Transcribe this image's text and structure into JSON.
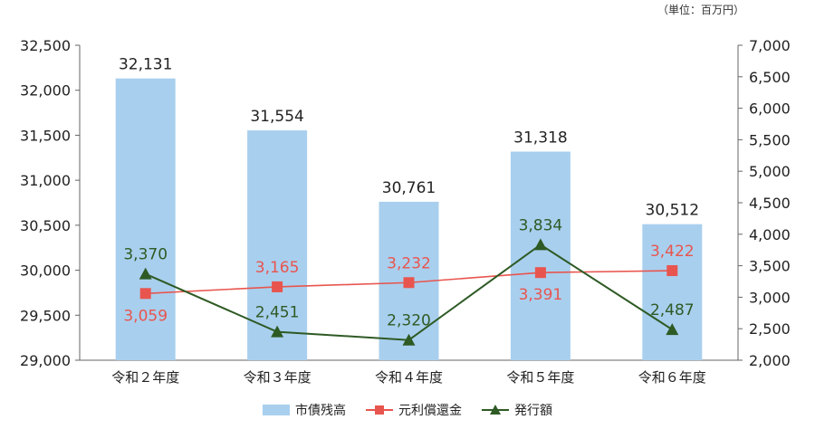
{
  "unit_note": "（単位：百万円）",
  "legend": {
    "bar": "市債残高",
    "line1": "元利償還金",
    "line2": "発行額"
  },
  "colors": {
    "bar": "#a9cfee",
    "line1": "#e8554e",
    "line2": "#2e5a24",
    "bar_label": "#222222",
    "axis": "#666666"
  },
  "chart_data": {
    "type": "bar",
    "title": "",
    "categories": [
      "令和２年度",
      "令和３年度",
      "令和４年度",
      "令和５年度",
      "令和６年度"
    ],
    "left_axis": {
      "ylim": [
        29000,
        32500
      ],
      "ticks": [
        "29,000",
        "29,500",
        "30,000",
        "30,500",
        "31,000",
        "31,500",
        "32,000",
        "32,500"
      ]
    },
    "right_axis": {
      "ylim": [
        2000,
        7000
      ],
      "ticks": [
        "2,000",
        "2,500",
        "3,000",
        "3,500",
        "4,000",
        "4,500",
        "5,000",
        "5,500",
        "6,000",
        "6,500",
        "7,000"
      ]
    },
    "series": [
      {
        "name": "市債残高",
        "kind": "bar",
        "axis": "left",
        "values": [
          32131,
          31554,
          30761,
          31318,
          30512
        ],
        "labels": [
          "32,131",
          "31,554",
          "30,761",
          "31,318",
          "30,512"
        ]
      },
      {
        "name": "元利償還金",
        "kind": "line",
        "axis": "right",
        "marker": "square",
        "values": [
          3059,
          3165,
          3232,
          3391,
          3422
        ],
        "labels": [
          "3,059",
          "3,165",
          "3,232",
          "3,391",
          "3,422"
        ],
        "label_position": [
          "below",
          "above",
          "above",
          "below",
          "above"
        ]
      },
      {
        "name": "発行額",
        "kind": "line",
        "axis": "right",
        "marker": "triangle",
        "values": [
          3370,
          2451,
          2320,
          3834,
          2487
        ],
        "labels": [
          "3,370",
          "2,451",
          "2,320",
          "3,834",
          "2,487"
        ],
        "label_position": [
          "above",
          "above",
          "above",
          "above",
          "above"
        ]
      }
    ],
    "grid": false,
    "legend_position": "bottom"
  }
}
